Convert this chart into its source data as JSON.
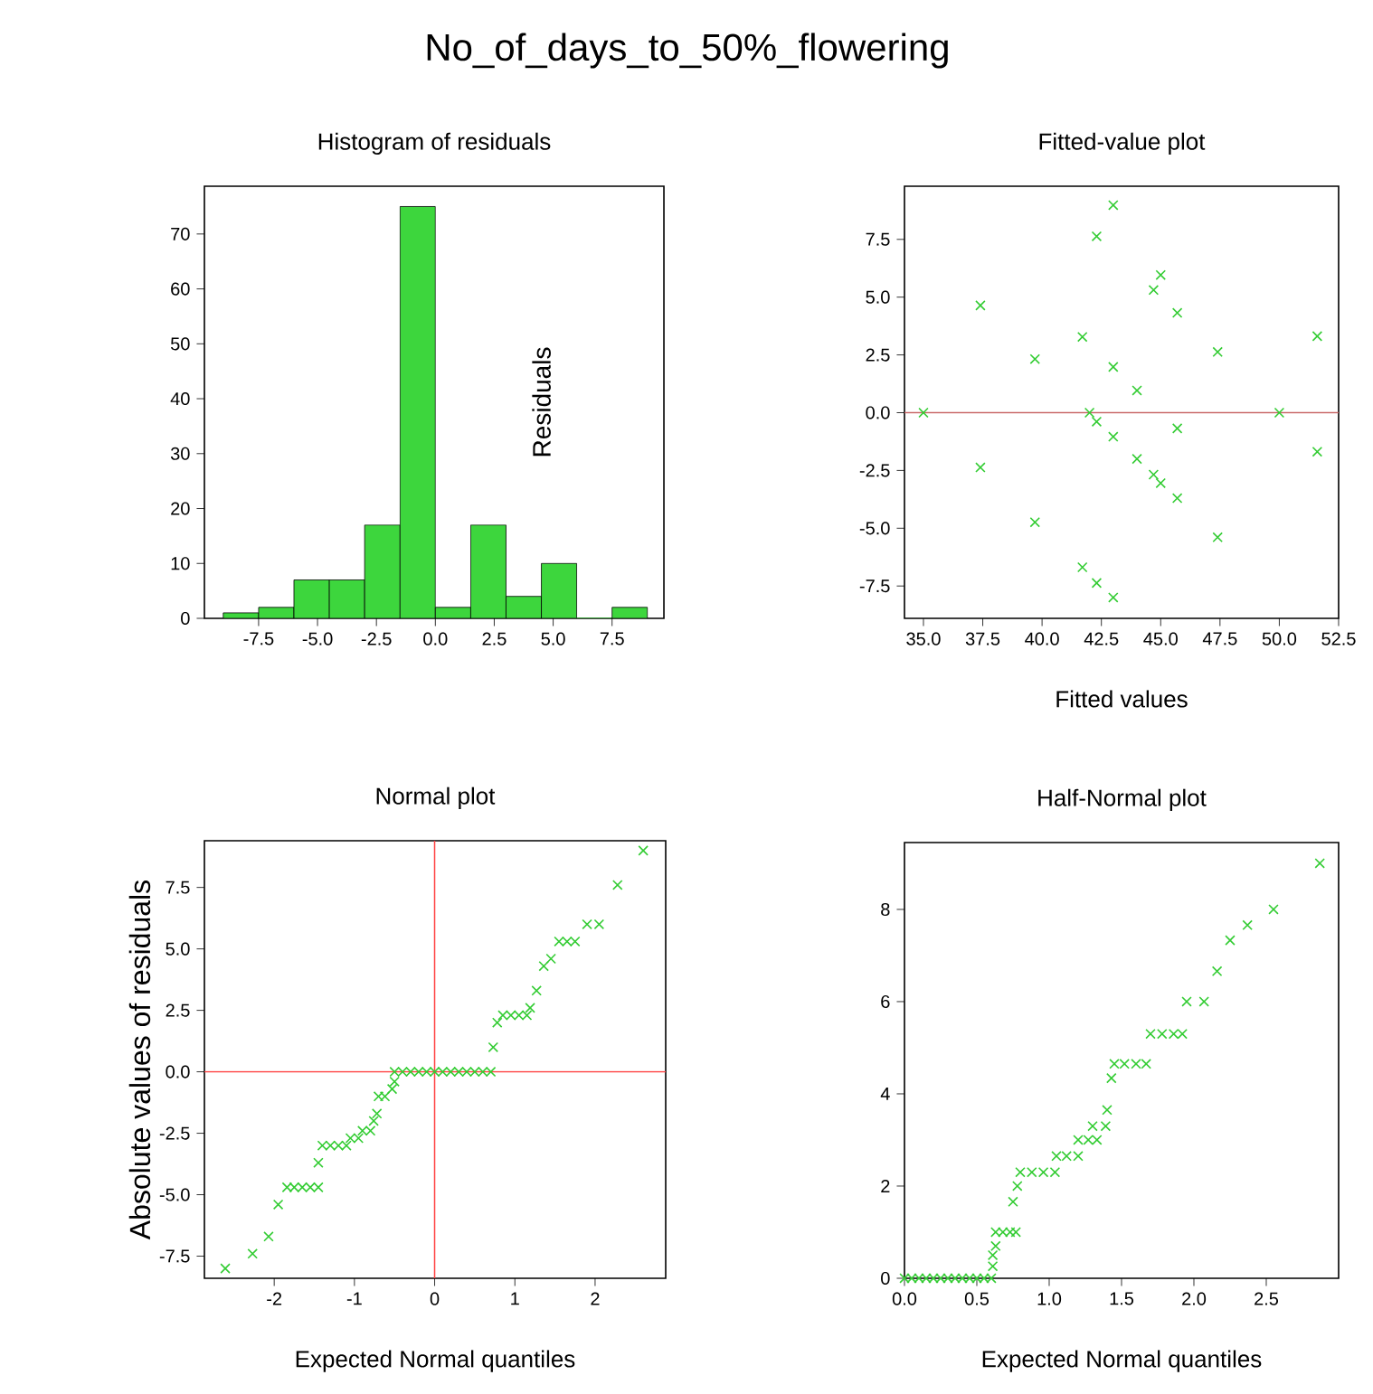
{
  "chart_data": [
    {
      "type": "histogram",
      "title": "Histogram of residuals",
      "annotations": [
        "No_of_days_to_50%_flowering"
      ],
      "bins": [
        -9,
        -7.5,
        -6,
        -4.5,
        -3,
        -1.5,
        0,
        1.5,
        3,
        4.5,
        6,
        7.5,
        9
      ],
      "values": [
        1,
        2,
        7,
        7,
        17,
        75,
        2,
        17,
        4,
        10,
        0,
        2
      ],
      "color": "#3dd63d",
      "xlim": [
        -9.8,
        9.7
      ],
      "ylim": [
        0,
        78.7
      ],
      "xticks": [
        -7.5,
        {
          "value": -5,
          "label": "-5.0"
        },
        -2.5,
        {
          "value": 0,
          "label": "0.0"
        },
        2.5,
        {
          "value": 5,
          "label": "5.0"
        },
        7.5
      ],
      "yticks": [
        0,
        10,
        20,
        30,
        40,
        50,
        60,
        70
      ]
    },
    {
      "type": "scatter",
      "title": "Fitted-value plot",
      "xlabel": "Fitted values",
      "ylabel": "Residuals",
      "marker": "cross",
      "color": "#33cc33",
      "x": [
        35.0,
        37.4,
        37.4,
        39.7,
        39.7,
        41.7,
        41.7,
        42.0,
        42.3,
        42.3,
        42.3,
        43.0,
        43.0,
        43.0,
        43.0,
        44.0,
        44.0,
        44.7,
        44.7,
        45.0,
        45.0,
        45.7,
        45.7,
        45.7,
        47.4,
        47.4,
        50.0,
        51.6,
        51.6
      ],
      "values": [
        0,
        4.64,
        -2.37,
        2.32,
        -4.74,
        3.28,
        -6.69,
        0,
        7.63,
        -0.39,
        -7.37,
        8.98,
        1.98,
        -1.04,
        -8.0,
        0.96,
        -2.0,
        5.31,
        -2.68,
        5.96,
        -3.05,
        4.32,
        -0.68,
        -3.7,
        2.63,
        -5.39,
        0,
        3.31,
        -1.69
      ],
      "ref_lines": [
        {
          "axis": "y",
          "value": 0,
          "color": "#c86464"
        }
      ],
      "xlim": [
        34.2,
        52.5
      ],
      "ylim": [
        -8.9,
        9.8
      ],
      "xticks": [
        {
          "value": 35,
          "label": "35.0"
        },
        37.5,
        {
          "value": 40,
          "label": "40.0"
        },
        42.5,
        {
          "value": 45,
          "label": "45.0"
        },
        47.5,
        {
          "value": 50,
          "label": "50.0"
        },
        52.5
      ],
      "yticks": [
        -7.5,
        {
          "value": -5,
          "label": "-5.0"
        },
        -2.5,
        {
          "value": 0,
          "label": "0.0"
        },
        2.5,
        {
          "value": 5,
          "label": "5.0"
        },
        7.5
      ]
    },
    {
      "type": "scatter",
      "title": "Normal plot",
      "xlabel": "Expected Normal quantiles",
      "ylabel": "Absolute values of residuals",
      "marker": "cross",
      "color": "#33cc33",
      "x": [
        -2.61,
        -2.27,
        -2.07,
        -1.95,
        -1.84,
        -1.75,
        -1.65,
        -1.55,
        -1.45,
        -1.45,
        -1.4,
        -1.3,
        -1.2,
        -1.1,
        -1.05,
        -0.95,
        -0.9,
        -0.8,
        -0.76,
        -0.72,
        -0.7,
        -0.62,
        -0.53,
        -0.5,
        -0.5,
        -0.4,
        -0.3,
        -0.2,
        -0.1,
        0,
        0.1,
        0.2,
        0.3,
        0.4,
        0.5,
        0.6,
        0.7,
        0.73,
        0.78,
        0.85,
        0.95,
        1.05,
        1.15,
        1.19,
        1.27,
        1.36,
        1.45,
        1.55,
        1.65,
        1.75,
        1.9,
        2.05,
        2.28,
        2.6
      ],
      "values": [
        -8.0,
        -7.4,
        -6.7,
        -5.4,
        -4.7,
        -4.7,
        -4.7,
        -4.7,
        -4.7,
        -3.7,
        -3.0,
        -3.0,
        -3.0,
        -3.0,
        -2.7,
        -2.7,
        -2.4,
        -2.4,
        -2.0,
        -1.7,
        -1.0,
        -1.0,
        -0.7,
        -0.4,
        0,
        0,
        0,
        0,
        0,
        0,
        0,
        0,
        0,
        0,
        0,
        0,
        0,
        1.0,
        2.0,
        2.3,
        2.3,
        2.3,
        2.3,
        2.6,
        3.3,
        4.3,
        4.6,
        5.3,
        5.3,
        5.3,
        6.0,
        6.0,
        7.6,
        9.0
      ],
      "ref_lines": [
        {
          "axis": "x",
          "value": 0,
          "color": "#ff4444"
        },
        {
          "axis": "y",
          "value": 0,
          "color": "#ff4444"
        }
      ],
      "xlim": [
        -2.87,
        2.88
      ],
      "ylim": [
        -8.4,
        9.4
      ],
      "xticks": [
        -2,
        -1,
        0,
        1,
        2
      ],
      "yticks": [
        -7.5,
        {
          "value": -5,
          "label": "-5.0"
        },
        -2.5,
        {
          "value": 0,
          "label": "0.0"
        },
        2.5,
        {
          "value": 5,
          "label": "5.0"
        },
        7.5
      ]
    },
    {
      "type": "scatter",
      "title": "Half-Normal plot",
      "xlabel": "Expected Normal quantiles",
      "marker": "cross",
      "color": "#33cc33",
      "x": [
        0,
        0.05,
        0.1,
        0.15,
        0.2,
        0.25,
        0.3,
        0.35,
        0.4,
        0.45,
        0.5,
        0.55,
        0.6,
        0.61,
        0.61,
        0.63,
        0.63,
        0.68,
        0.73,
        0.77,
        0.75,
        0.78,
        0.8,
        0.88,
        0.96,
        1.04,
        1.05,
        1.12,
        1.2,
        1.2,
        1.27,
        1.33,
        1.3,
        1.39,
        1.4,
        1.43,
        1.45,
        1.52,
        1.6,
        1.67,
        1.7,
        1.78,
        1.86,
        1.92,
        1.95,
        2.07,
        2.16,
        2.25,
        2.37,
        2.55,
        2.87
      ],
      "values": [
        0,
        0,
        0,
        0,
        0,
        0,
        0,
        0,
        0,
        0,
        0,
        0,
        0,
        0.26,
        0.5,
        0.7,
        1.0,
        1.0,
        1.0,
        1.0,
        1.66,
        2.0,
        2.3,
        2.3,
        2.3,
        2.3,
        2.65,
        2.65,
        2.65,
        3.0,
        3.0,
        3.0,
        3.3,
        3.3,
        3.65,
        4.34,
        4.65,
        4.65,
        4.65,
        4.65,
        5.3,
        5.3,
        5.3,
        5.3,
        6.0,
        6.0,
        6.66,
        7.33,
        7.66,
        8.0,
        9.0
      ],
      "xlim": [
        0,
        3.0
      ],
      "ylim": [
        0,
        9.45
      ],
      "xticks": [
        {
          "value": 0,
          "label": "0.0"
        },
        0.5,
        {
          "value": 1,
          "label": "1.0"
        },
        1.5,
        {
          "value": 2,
          "label": "2.0"
        },
        2.5
      ],
      "yticks": [
        0,
        2,
        4,
        6,
        8
      ]
    }
  ]
}
